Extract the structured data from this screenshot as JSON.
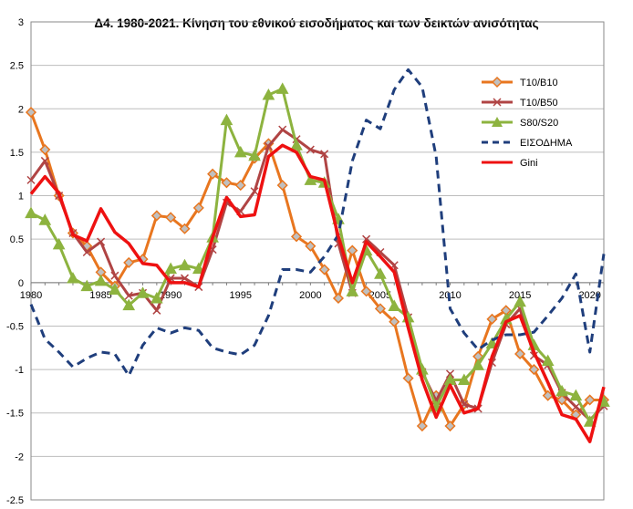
{
  "chart_data": {
    "type": "line",
    "title": "Δ4. 1980-2021. Κίνηση του εθνικού εισοδήματος και των δεικτών ανισότητας",
    "xlabel": "",
    "ylabel": "",
    "x": [
      1980,
      1981,
      1982,
      1983,
      1984,
      1985,
      1986,
      1987,
      1988,
      1989,
      1990,
      1991,
      1992,
      1993,
      1994,
      1995,
      1996,
      1997,
      1998,
      1999,
      2000,
      2001,
      2002,
      2003,
      2004,
      2005,
      2006,
      2007,
      2008,
      2009,
      2010,
      2011,
      2012,
      2013,
      2014,
      2015,
      2016,
      2017,
      2018,
      2019,
      2020,
      2021
    ],
    "x_ticks": [
      1980,
      1985,
      1990,
      1995,
      2000,
      2005,
      2010,
      2015,
      2020
    ],
    "ylim": [
      -2.5,
      3
    ],
    "y_ticks": [
      -2.5,
      -2,
      -1.5,
      -1,
      -0.5,
      0,
      0.5,
      1,
      1.5,
      2,
      2.5,
      3
    ],
    "y_tick_labels": [
      "-2.5",
      "-2",
      "-1.5",
      "-1",
      "-0.5",
      "0",
      "0.5",
      "1",
      "1.5",
      "2",
      "2.5",
      "3"
    ],
    "grid": "horizontal",
    "legend_position": "right",
    "series": [
      {
        "name": "T10/B10",
        "color": "#e8761f",
        "marker": "diamond",
        "dash": false,
        "values": [
          1.96,
          1.53,
          1.0,
          0.57,
          0.42,
          0.12,
          -0.04,
          0.23,
          0.27,
          0.77,
          0.75,
          0.62,
          0.86,
          1.25,
          1.15,
          1.12,
          1.43,
          1.6,
          1.12,
          0.53,
          0.42,
          0.15,
          -0.18,
          0.37,
          -0.1,
          -0.3,
          -0.45,
          -1.1,
          -1.65,
          -1.3,
          -1.65,
          -1.4,
          -0.85,
          -0.42,
          -0.32,
          -0.82,
          -1.0,
          -1.3,
          -1.35,
          -1.52,
          -1.35,
          -1.35
        ]
      },
      {
        "name": "T10/B50",
        "color": "#b04444",
        "marker": "x",
        "dash": false,
        "values": [
          1.18,
          1.4,
          1.0,
          0.57,
          0.35,
          0.47,
          0.08,
          -0.15,
          -0.12,
          -0.32,
          0.05,
          0.05,
          -0.05,
          0.38,
          0.92,
          0.82,
          1.05,
          1.57,
          1.76,
          1.65,
          1.53,
          1.48,
          0.45,
          -0.12,
          0.5,
          0.35,
          0.2,
          -0.4,
          -1.03,
          -1.36,
          -1.05,
          -1.4,
          -1.45,
          -0.92,
          -0.48,
          -0.3,
          -0.84,
          -0.95,
          -1.27,
          -1.43,
          -1.58,
          -1.42
        ]
      },
      {
        "name": "S80/S20",
        "color": "#8db33f",
        "marker": "triangle",
        "dash": false,
        "values": [
          0.8,
          0.72,
          0.44,
          0.05,
          -0.04,
          0.02,
          -0.08,
          -0.26,
          -0.12,
          -0.18,
          0.16,
          0.2,
          0.16,
          0.52,
          1.87,
          1.5,
          1.46,
          2.16,
          2.23,
          1.58,
          1.18,
          1.15,
          0.73,
          -0.1,
          0.37,
          0.1,
          -0.27,
          -0.4,
          -1.0,
          -1.43,
          -1.12,
          -1.12,
          -0.95,
          -0.7,
          -0.42,
          -0.22,
          -0.72,
          -0.9,
          -1.25,
          -1.3,
          -1.6,
          -1.37
        ]
      },
      {
        "name": "ΕΙΣΟΔΗΜΑ",
        "color": "#1f3e7c",
        "marker": "none",
        "dash": true,
        "values": [
          -0.25,
          -0.65,
          -0.8,
          -0.97,
          -0.87,
          -0.8,
          -0.82,
          -1.07,
          -0.72,
          -0.52,
          -0.58,
          -0.52,
          -0.55,
          -0.75,
          -0.8,
          -0.83,
          -0.72,
          -0.38,
          0.15,
          0.15,
          0.12,
          0.3,
          0.55,
          1.4,
          1.87,
          1.77,
          2.22,
          2.45,
          2.25,
          1.45,
          -0.3,
          -0.58,
          -0.77,
          -0.66,
          -0.6,
          -0.6,
          -0.57,
          -0.38,
          -0.18,
          0.1,
          -0.8,
          0.33
        ]
      },
      {
        "name": "Gini",
        "color": "#ee1111",
        "marker": "none",
        "dash": false,
        "values": [
          1.02,
          1.22,
          1.03,
          0.55,
          0.48,
          0.85,
          0.58,
          0.45,
          0.22,
          0.2,
          0.0,
          0.0,
          -0.05,
          0.52,
          0.98,
          0.76,
          0.78,
          1.45,
          1.58,
          1.5,
          1.22,
          1.18,
          0.53,
          0.0,
          0.47,
          0.3,
          0.12,
          -0.52,
          -1.12,
          -1.55,
          -1.18,
          -1.5,
          -1.45,
          -0.85,
          -0.45,
          -0.38,
          -0.8,
          -1.15,
          -1.52,
          -1.57,
          -1.83,
          -1.2
        ]
      }
    ]
  }
}
